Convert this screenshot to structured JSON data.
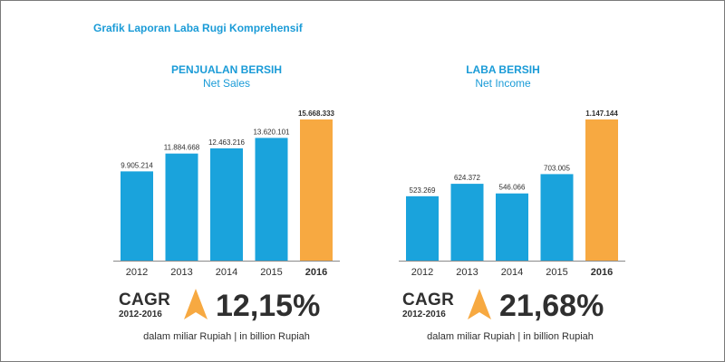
{
  "page_title": "Grafik Laporan Laba Rugi Komprehensif",
  "colors": {
    "bar": "#1aa3dc",
    "highlight": "#f7a941",
    "title": "#1a9bd7",
    "text": "#2f2f2f",
    "axis": "#8a8a8a"
  },
  "chart_data": [
    {
      "type": "bar",
      "title": "PENJUALAN BERSIH",
      "subtitle": "Net Sales",
      "categories": [
        "2012",
        "2013",
        "2014",
        "2015",
        "2016"
      ],
      "values": [
        9905214,
        11884668,
        12463216,
        13620101,
        15668333
      ],
      "value_labels": [
        "9.905.214",
        "11.884.668",
        "12.463.216",
        "13.620.101",
        "15.668.333"
      ],
      "highlight_index": 4,
      "ylim": [
        0,
        15668333
      ],
      "grid": false,
      "cagr": {
        "label": "CAGR",
        "period": "2012-2016",
        "value": "12,15%"
      },
      "unit_note": "dalam miliar Rupiah | in billion Rupiah"
    },
    {
      "type": "bar",
      "title": "LABA BERSIH",
      "subtitle": "Net Income",
      "categories": [
        "2012",
        "2013",
        "2014",
        "2015",
        "2016"
      ],
      "values": [
        523269,
        624372,
        546066,
        703005,
        1147144
      ],
      "value_labels": [
        "523.269",
        "624.372",
        "546.066",
        "703.005",
        "1.147.144"
      ],
      "highlight_index": 4,
      "ylim": [
        0,
        1147144
      ],
      "grid": false,
      "cagr": {
        "label": "CAGR",
        "period": "2012-2016",
        "value": "21,68%"
      },
      "unit_note": "dalam miliar Rupiah | in billion Rupiah"
    }
  ]
}
